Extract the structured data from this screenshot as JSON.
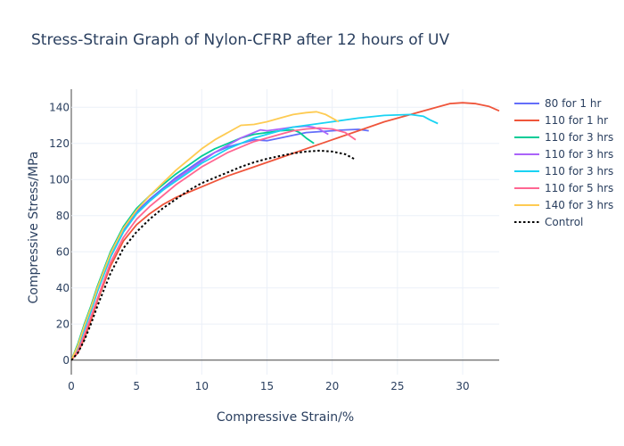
{
  "chart_data": {
    "type": "line",
    "title": "Stress-Strain Graph of Nylon-CFRP after 12 hours of UV",
    "xlabel": "Compressive Strain/%",
    "ylabel": "Compressive Stress/MPa",
    "xlim": [
      0,
      32.8
    ],
    "ylim": [
      -8,
      150
    ],
    "xticks": [
      0,
      5,
      10,
      15,
      20,
      25,
      30
    ],
    "yticks": [
      0,
      20,
      40,
      60,
      80,
      100,
      120,
      140
    ],
    "grid": true,
    "legend_position": "right",
    "series": [
      {
        "name": "80 for 1 hr",
        "color": "#636efa",
        "dash": "solid",
        "points": [
          [
            0,
            0
          ],
          [
            0.5,
            8
          ],
          [
            1,
            18
          ],
          [
            1.5,
            28
          ],
          [
            2,
            39
          ],
          [
            3,
            58
          ],
          [
            4,
            72
          ],
          [
            5,
            82
          ],
          [
            6,
            89
          ],
          [
            7,
            95
          ],
          [
            8,
            101
          ],
          [
            9,
            106
          ],
          [
            10,
            111
          ],
          [
            11,
            115
          ],
          [
            12,
            118
          ],
          [
            13,
            120
          ],
          [
            14,
            122
          ],
          [
            15,
            121.5
          ],
          [
            16,
            123
          ],
          [
            17,
            124.5
          ],
          [
            18,
            126
          ],
          [
            19,
            126.5
          ],
          [
            20,
            127
          ],
          [
            21,
            127.5
          ],
          [
            22,
            127.8
          ],
          [
            22.8,
            127
          ]
        ]
      },
      {
        "name": "110 for 1 hr",
        "color": "#ef553b",
        "dash": "solid",
        "points": [
          [
            0,
            0
          ],
          [
            0.5,
            4
          ],
          [
            1,
            12
          ],
          [
            1.5,
            22
          ],
          [
            2,
            33
          ],
          [
            3,
            52
          ],
          [
            4,
            66
          ],
          [
            5,
            75
          ],
          [
            6,
            81
          ],
          [
            7,
            86
          ],
          [
            8,
            90
          ],
          [
            10,
            96
          ],
          [
            12,
            102
          ],
          [
            14,
            107
          ],
          [
            16,
            112
          ],
          [
            18,
            117
          ],
          [
            20,
            122
          ],
          [
            22,
            127
          ],
          [
            24,
            132
          ],
          [
            26,
            136
          ],
          [
            28,
            140
          ],
          [
            29,
            142
          ],
          [
            30,
            142.5
          ],
          [
            31,
            142
          ],
          [
            32,
            140.5
          ],
          [
            32.8,
            138
          ]
        ]
      },
      {
        "name": "110 for 3 hrs",
        "color": "#00cc96",
        "dash": "solid",
        "points": [
          [
            0,
            0
          ],
          [
            0.5,
            9
          ],
          [
            1,
            20
          ],
          [
            1.5,
            30
          ],
          [
            2,
            41
          ],
          [
            3,
            60
          ],
          [
            4,
            74
          ],
          [
            5,
            84
          ],
          [
            6,
            91
          ],
          [
            7,
            97
          ],
          [
            8,
            103
          ],
          [
            9,
            108
          ],
          [
            10,
            113
          ],
          [
            11,
            117
          ],
          [
            12,
            120
          ],
          [
            13,
            123
          ],
          [
            14,
            125
          ],
          [
            15,
            126
          ],
          [
            16,
            127
          ],
          [
            17,
            127.5
          ],
          [
            17.5,
            126
          ],
          [
            18,
            123
          ],
          [
            18.6,
            120
          ]
        ]
      },
      {
        "name": "110 for 3 hrs",
        "color": "#ab63fa",
        "dash": "solid",
        "points": [
          [
            0,
            0
          ],
          [
            0.5,
            7
          ],
          [
            1,
            17
          ],
          [
            1.5,
            27
          ],
          [
            2,
            38
          ],
          [
            3,
            57
          ],
          [
            4,
            71
          ],
          [
            5,
            81
          ],
          [
            6,
            88
          ],
          [
            7,
            94
          ],
          [
            8,
            100
          ],
          [
            9,
            105
          ],
          [
            10,
            110
          ],
          [
            11,
            115
          ],
          [
            12,
            119
          ],
          [
            13,
            123
          ],
          [
            14,
            126
          ],
          [
            14.5,
            127.5
          ],
          [
            15,
            127
          ],
          [
            16,
            128
          ],
          [
            17,
            129
          ],
          [
            18,
            129.5
          ],
          [
            18.5,
            129
          ],
          [
            19,
            128
          ],
          [
            19.7,
            125
          ]
        ]
      },
      {
        "name": "110 for 3 hrs",
        "color": "#19d3f3",
        "dash": "solid",
        "points": [
          [
            0,
            0
          ],
          [
            0.5,
            7
          ],
          [
            1,
            17
          ],
          [
            1.5,
            27
          ],
          [
            2,
            38
          ],
          [
            3,
            57
          ],
          [
            4,
            71
          ],
          [
            5,
            81
          ],
          [
            6,
            88
          ],
          [
            7,
            94
          ],
          [
            8,
            99
          ],
          [
            9,
            104
          ],
          [
            10,
            109
          ],
          [
            11,
            113
          ],
          [
            12,
            117
          ],
          [
            13,
            120
          ],
          [
            14,
            123
          ],
          [
            15,
            125
          ],
          [
            16,
            127
          ],
          [
            17,
            129
          ],
          [
            18,
            130
          ],
          [
            19,
            131
          ],
          [
            20,
            132
          ],
          [
            22,
            134
          ],
          [
            24,
            135.5
          ],
          [
            26,
            136
          ],
          [
            27,
            135
          ],
          [
            27.5,
            133
          ],
          [
            28.1,
            131
          ]
        ]
      },
      {
        "name": "110 for 5 hrs",
        "color": "#ff6692",
        "dash": "solid",
        "points": [
          [
            0,
            0
          ],
          [
            0.5,
            5
          ],
          [
            1,
            14
          ],
          [
            1.5,
            24
          ],
          [
            2,
            34
          ],
          [
            3,
            54
          ],
          [
            4,
            68
          ],
          [
            5,
            78
          ],
          [
            6,
            85
          ],
          [
            7,
            91
          ],
          [
            8,
            97
          ],
          [
            9,
            102
          ],
          [
            10,
            107
          ],
          [
            11,
            111
          ],
          [
            12,
            115
          ],
          [
            13,
            118
          ],
          [
            14,
            121
          ],
          [
            15,
            123
          ],
          [
            16,
            125
          ],
          [
            17,
            127
          ],
          [
            18,
            128
          ],
          [
            19,
            128.5
          ],
          [
            20,
            128
          ],
          [
            21,
            126
          ],
          [
            21.8,
            122
          ]
        ]
      },
      {
        "name": "140 for 3 hrs",
        "color": "#fecb52",
        "dash": "solid",
        "points": [
          [
            0,
            0
          ],
          [
            0.5,
            8
          ],
          [
            1,
            19
          ],
          [
            1.5,
            29
          ],
          [
            2,
            40
          ],
          [
            3,
            59
          ],
          [
            4,
            73
          ],
          [
            5,
            83
          ],
          [
            6,
            91
          ],
          [
            7,
            98
          ],
          [
            8,
            105
          ],
          [
            9,
            111
          ],
          [
            10,
            117
          ],
          [
            11,
            122
          ],
          [
            12,
            126
          ],
          [
            13,
            130
          ],
          [
            14,
            130.5
          ],
          [
            15,
            132
          ],
          [
            16,
            134
          ],
          [
            17,
            136
          ],
          [
            18,
            137
          ],
          [
            18.8,
            137.5
          ],
          [
            19.5,
            136
          ],
          [
            20,
            134
          ],
          [
            20.5,
            132
          ]
        ]
      },
      {
        "name": "Control",
        "color": "#000000",
        "dash": "dot",
        "points": [
          [
            0,
            0
          ],
          [
            0.5,
            4
          ],
          [
            1,
            11
          ],
          [
            1.5,
            20
          ],
          [
            2,
            30
          ],
          [
            3,
            48
          ],
          [
            4,
            62
          ],
          [
            5,
            71
          ],
          [
            6,
            78
          ],
          [
            7,
            84
          ],
          [
            8,
            89
          ],
          [
            9,
            94
          ],
          [
            10,
            98
          ],
          [
            11,
            101
          ],
          [
            12,
            104
          ],
          [
            13,
            107
          ],
          [
            14,
            109.5
          ],
          [
            15,
            111.5
          ],
          [
            16,
            113
          ],
          [
            17,
            114.5
          ],
          [
            18,
            115.5
          ],
          [
            19,
            116
          ],
          [
            20,
            115.5
          ],
          [
            21,
            114
          ],
          [
            21.8,
            111
          ]
        ]
      }
    ]
  }
}
